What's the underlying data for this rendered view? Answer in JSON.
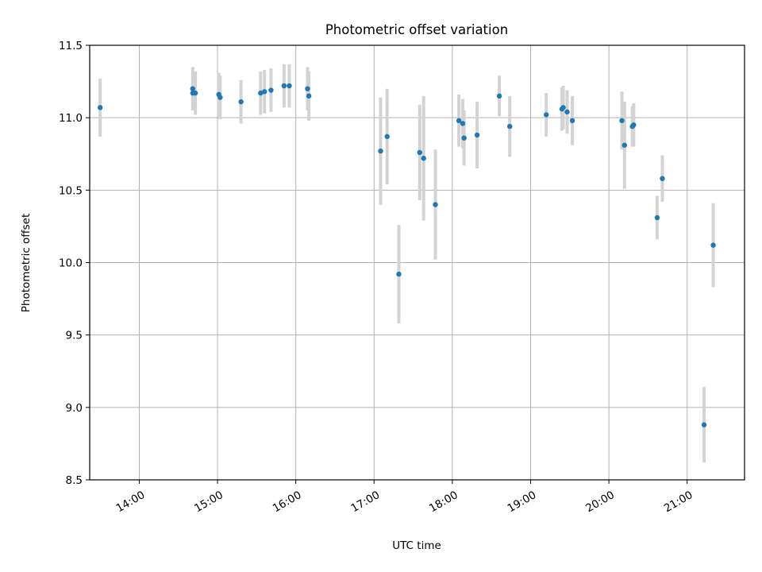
{
  "chart_data": {
    "type": "scatter",
    "title": "Photometric offset variation",
    "xlabel": "UTC time",
    "ylabel": "Photometric offset",
    "xlim": [
      "13:22",
      "21:44"
    ],
    "ylim": [
      8.5,
      11.5
    ],
    "xticks": [
      "14:00",
      "15:00",
      "16:00",
      "17:00",
      "18:00",
      "19:00",
      "20:00",
      "21:00"
    ],
    "yticks": [
      "8.5",
      "9.0",
      "9.5",
      "10.0",
      "10.5",
      "11.0",
      "11.5"
    ],
    "grid": true,
    "marker_color": "#1f77b4",
    "errorbar_color": "#d3d3d3",
    "points": [
      {
        "x": "13:30",
        "y": 11.07,
        "err": 0.2
      },
      {
        "x": "14:41",
        "y": 11.2,
        "err": 0.15
      },
      {
        "x": "14:41",
        "y": 11.17,
        "err": 0.12
      },
      {
        "x": "14:43",
        "y": 11.17,
        "err": 0.15
      },
      {
        "x": "15:01",
        "y": 11.16,
        "err": 0.15
      },
      {
        "x": "15:02",
        "y": 11.14,
        "err": 0.15
      },
      {
        "x": "15:18",
        "y": 11.11,
        "err": 0.15
      },
      {
        "x": "15:33",
        "y": 11.17,
        "err": 0.15
      },
      {
        "x": "15:36",
        "y": 11.18,
        "err": 0.15
      },
      {
        "x": "15:41",
        "y": 11.19,
        "err": 0.15
      },
      {
        "x": "15:51",
        "y": 11.22,
        "err": 0.15
      },
      {
        "x": "15:55",
        "y": 11.22,
        "err": 0.15
      },
      {
        "x": "16:09",
        "y": 11.2,
        "err": 0.15
      },
      {
        "x": "16:10",
        "y": 11.15,
        "err": 0.17
      },
      {
        "x": "17:05",
        "y": 10.77,
        "err": 0.37
      },
      {
        "x": "17:10",
        "y": 10.87,
        "err": 0.33
      },
      {
        "x": "17:19",
        "y": 9.92,
        "err": 0.34
      },
      {
        "x": "17:35",
        "y": 10.76,
        "err": 0.33
      },
      {
        "x": "17:38",
        "y": 10.72,
        "err": 0.43
      },
      {
        "x": "17:47",
        "y": 10.4,
        "err": 0.38
      },
      {
        "x": "18:05",
        "y": 10.98,
        "err": 0.18
      },
      {
        "x": "18:08",
        "y": 10.96,
        "err": 0.17
      },
      {
        "x": "18:09",
        "y": 10.86,
        "err": 0.19
      },
      {
        "x": "18:19",
        "y": 10.88,
        "err": 0.23
      },
      {
        "x": "18:36",
        "y": 11.15,
        "err": 0.14
      },
      {
        "x": "18:44",
        "y": 10.94,
        "err": 0.21
      },
      {
        "x": "19:12",
        "y": 11.02,
        "err": 0.15
      },
      {
        "x": "19:24",
        "y": 11.06,
        "err": 0.15
      },
      {
        "x": "19:25",
        "y": 11.07,
        "err": 0.15
      },
      {
        "x": "19:28",
        "y": 11.04,
        "err": 0.15
      },
      {
        "x": "19:32",
        "y": 10.98,
        "err": 0.17
      },
      {
        "x": "20:10",
        "y": 10.98,
        "err": 0.2
      },
      {
        "x": "20:12",
        "y": 10.81,
        "err": 0.3
      },
      {
        "x": "20:18",
        "y": 10.94,
        "err": 0.14
      },
      {
        "x": "20:19",
        "y": 10.95,
        "err": 0.15
      },
      {
        "x": "20:37",
        "y": 10.31,
        "err": 0.15
      },
      {
        "x": "20:41",
        "y": 10.58,
        "err": 0.16
      },
      {
        "x": "21:13",
        "y": 8.88,
        "err": 0.26
      },
      {
        "x": "21:20",
        "y": 10.12,
        "err": 0.29
      }
    ]
  }
}
